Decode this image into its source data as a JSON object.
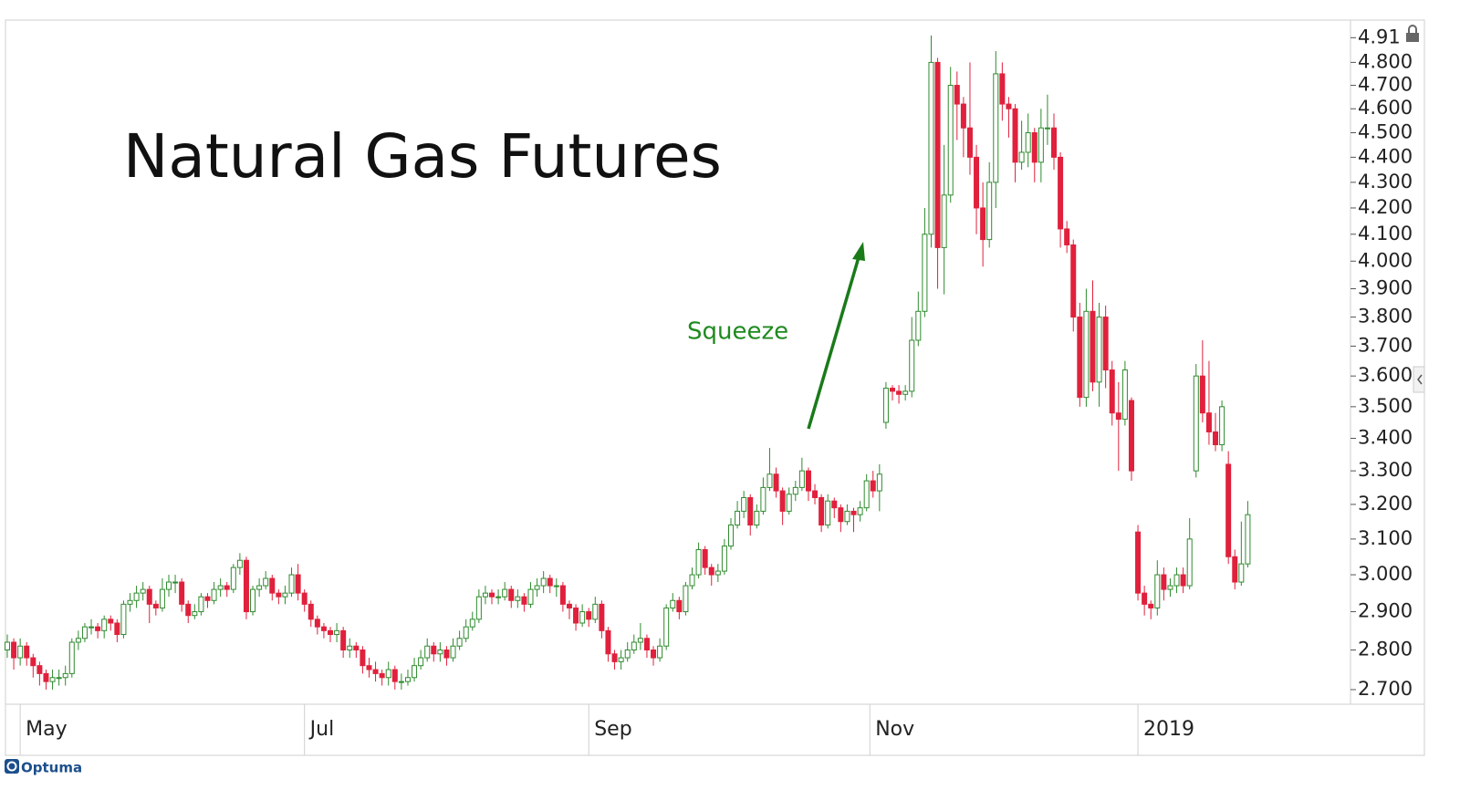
{
  "chart_data": {
    "type": "candlestick",
    "title": "Natural Gas Futures",
    "annotation": "Squeeze",
    "watermark": "Optuma",
    "log_y": true,
    "ylim": [
      2.664,
      4.99
    ],
    "yticks": [
      {
        "value": 2.7,
        "label": "2.700"
      },
      {
        "value": 2.8,
        "label": "2.800"
      },
      {
        "value": 2.9,
        "label": "2.900"
      },
      {
        "value": 3.0,
        "label": "3.000"
      },
      {
        "value": 3.1,
        "label": "3.100"
      },
      {
        "value": 3.2,
        "label": "3.200"
      },
      {
        "value": 3.3,
        "label": "3.300"
      },
      {
        "value": 3.4,
        "label": "3.400"
      },
      {
        "value": 3.5,
        "label": "3.500"
      },
      {
        "value": 3.6,
        "label": "3.600"
      },
      {
        "value": 3.7,
        "label": "3.700"
      },
      {
        "value": 3.8,
        "label": "3.800"
      },
      {
        "value": 3.9,
        "label": "3.900"
      },
      {
        "value": 4.0,
        "label": "4.000"
      },
      {
        "value": 4.1,
        "label": "4.100"
      },
      {
        "value": 4.2,
        "label": "4.200"
      },
      {
        "value": 4.3,
        "label": "4.300"
      },
      {
        "value": 4.4,
        "label": "4.400"
      },
      {
        "value": 4.5,
        "label": "4.500"
      },
      {
        "value": 4.6,
        "label": "4.600"
      },
      {
        "value": 4.7,
        "label": "4.700"
      },
      {
        "value": 4.8,
        "label": "4.800"
      },
      4.91
    ],
    "xlim": [
      -0.28,
      207.9
    ],
    "xticks": [
      {
        "value": 2,
        "label": "May"
      },
      {
        "value": 46,
        "label": "Jul"
      },
      {
        "value": 90,
        "label": "Sep"
      },
      {
        "value": 133.5,
        "label": "Nov"
      },
      {
        "value": 175,
        "label": "2019"
      }
    ],
    "up_color": "#2e8b2e",
    "down_color": "#e0203c",
    "open": [
      2.8,
      2.82,
      2.78,
      2.81,
      2.78,
      2.76,
      2.74,
      2.72,
      2.73,
      2.73,
      2.74,
      2.82,
      2.83,
      2.86,
      2.86,
      2.85,
      2.88,
      2.87,
      2.84,
      2.92,
      2.93,
      2.95,
      2.96,
      2.92,
      2.91,
      2.96,
      2.98,
      2.98,
      2.92,
      2.89,
      2.9,
      2.94,
      2.93,
      2.96,
      2.97,
      2.96,
      3.02,
      3.04,
      2.9,
      2.96,
      2.97,
      2.99,
      2.95,
      2.94,
      2.95,
      3.0,
      2.95,
      2.92,
      2.88,
      2.86,
      2.85,
      2.84,
      2.85,
      2.8,
      2.81,
      2.8,
      2.76,
      2.75,
      2.74,
      2.73,
      2.75,
      2.72,
      2.72,
      2.73,
      2.76,
      2.78,
      2.81,
      2.79,
      2.8,
      2.78,
      2.81,
      2.83,
      2.86,
      2.88,
      2.94,
      2.95,
      2.94,
      2.94,
      2.96,
      2.93,
      2.94,
      2.92,
      2.96,
      2.97,
      2.99,
      2.97,
      2.97,
      2.92,
      2.91,
      2.87,
      2.9,
      2.88,
      2.92,
      2.85,
      2.79,
      2.77,
      2.78,
      2.8,
      2.82,
      2.83,
      2.8,
      2.78,
      2.81,
      2.91,
      2.93,
      2.9,
      2.97,
      3.0,
      3.07,
      3.02,
      3.0,
      3.01,
      3.08,
      3.14,
      3.18,
      3.22,
      3.14,
      3.18,
      3.25,
      3.29,
      3.24,
      3.18,
      3.23,
      3.25,
      3.3,
      3.24,
      3.22,
      3.14,
      3.21,
      3.19,
      3.15,
      3.18,
      3.17,
      3.19,
      3.27,
      3.24,
      3.45,
      3.56,
      3.55,
      3.54,
      3.55,
      3.72,
      3.82,
      4.1,
      4.8,
      4.05,
      4.25,
      4.7,
      4.62,
      4.52,
      4.4,
      4.2,
      4.08,
      4.3,
      4.75,
      4.62,
      4.6,
      4.38,
      4.42,
      4.5,
      4.38,
      4.52,
      4.52,
      4.4,
      4.12,
      4.06,
      3.8,
      3.53,
      3.82,
      3.58,
      3.8,
      3.62,
      3.48,
      3.46,
      3.52,
      3.12,
      2.95,
      2.92,
      2.91,
      3.0,
      2.96,
      2.97,
      3.0,
      2.97,
      3.3,
      3.6,
      3.48,
      3.42,
      3.38,
      3.32,
      3.05,
      2.98,
      3.03
    ],
    "high": [
      2.84,
      2.83,
      2.83,
      2.82,
      2.79,
      2.77,
      2.75,
      2.75,
      2.75,
      2.76,
      2.83,
      2.85,
      2.87,
      2.88,
      2.87,
      2.89,
      2.89,
      2.88,
      2.93,
      2.95,
      2.97,
      2.98,
      2.97,
      2.93,
      2.99,
      3.0,
      3.0,
      2.99,
      2.93,
      2.92,
      2.95,
      2.95,
      2.98,
      2.99,
      2.98,
      3.03,
      3.06,
      3.05,
      2.97,
      2.99,
      3.01,
      3.0,
      2.96,
      2.97,
      3.02,
      3.03,
      2.96,
      2.93,
      2.89,
      2.87,
      2.86,
      2.87,
      2.86,
      2.83,
      2.82,
      2.81,
      2.78,
      2.77,
      2.75,
      2.77,
      2.76,
      2.74,
      2.75,
      2.78,
      2.8,
      2.83,
      2.82,
      2.82,
      2.81,
      2.83,
      2.85,
      2.88,
      2.9,
      2.96,
      2.97,
      2.96,
      2.96,
      2.98,
      2.97,
      2.96,
      2.95,
      2.98,
      2.99,
      3.01,
      3.0,
      2.99,
      2.98,
      2.93,
      2.92,
      2.92,
      2.91,
      2.94,
      2.93,
      2.86,
      2.8,
      2.8,
      2.82,
      2.84,
      2.87,
      2.84,
      2.81,
      2.83,
      2.92,
      2.95,
      2.94,
      2.98,
      3.02,
      3.09,
      3.08,
      3.03,
      3.03,
      3.1,
      3.16,
      3.21,
      3.24,
      3.23,
      3.2,
      3.28,
      3.37,
      3.31,
      3.25,
      3.25,
      3.27,
      3.34,
      3.31,
      3.26,
      3.23,
      3.23,
      3.22,
      3.2,
      3.2,
      3.19,
      3.21,
      3.29,
      3.3,
      3.32,
      3.58,
      3.57,
      3.57,
      3.57,
      3.8,
      3.89,
      4.2,
      4.92,
      4.82,
      4.45,
      4.78,
      4.76,
      4.65,
      4.8,
      4.45,
      4.3,
      4.38,
      4.85,
      4.8,
      4.65,
      4.62,
      4.55,
      4.58,
      4.52,
      4.6,
      4.66,
      4.58,
      4.42,
      4.15,
      4.08,
      3.85,
      3.9,
      3.93,
      3.85,
      3.84,
      3.65,
      3.58,
      3.65,
      3.53,
      3.14,
      2.97,
      2.93,
      3.04,
      3.02,
      2.99,
      3.02,
      3.02,
      3.16,
      3.64,
      3.72,
      3.65,
      3.48,
      3.52,
      3.36,
      3.07,
      3.15,
      3.21
    ],
    "low": [
      2.78,
      2.75,
      2.76,
      2.76,
      2.73,
      2.71,
      2.7,
      2.7,
      2.71,
      2.71,
      2.73,
      2.8,
      2.82,
      2.84,
      2.83,
      2.83,
      2.85,
      2.82,
      2.83,
      2.9,
      2.91,
      2.93,
      2.87,
      2.89,
      2.9,
      2.94,
      2.95,
      2.9,
      2.87,
      2.88,
      2.89,
      2.91,
      2.92,
      2.94,
      2.94,
      2.95,
      3.0,
      2.88,
      2.89,
      2.94,
      2.96,
      2.93,
      2.92,
      2.92,
      2.94,
      2.93,
      2.9,
      2.86,
      2.84,
      2.83,
      2.82,
      2.82,
      2.78,
      2.78,
      2.78,
      2.74,
      2.73,
      2.72,
      2.71,
      2.71,
      2.7,
      2.7,
      2.71,
      2.72,
      2.75,
      2.77,
      2.77,
      2.77,
      2.76,
      2.77,
      2.8,
      2.82,
      2.85,
      2.87,
      2.92,
      2.92,
      2.92,
      2.93,
      2.91,
      2.91,
      2.9,
      2.91,
      2.94,
      2.95,
      2.95,
      2.94,
      2.9,
      2.88,
      2.85,
      2.86,
      2.86,
      2.87,
      2.83,
      2.77,
      2.75,
      2.75,
      2.77,
      2.79,
      2.8,
      2.78,
      2.76,
      2.77,
      2.8,
      2.9,
      2.88,
      2.89,
      2.96,
      2.99,
      3.0,
      2.97,
      2.98,
      3.0,
      3.07,
      3.13,
      3.16,
      3.11,
      3.13,
      3.17,
      3.24,
      3.22,
      3.14,
      3.17,
      3.21,
      3.24,
      3.21,
      3.2,
      3.12,
      3.13,
      3.16,
      3.12,
      3.14,
      3.12,
      3.15,
      3.18,
      3.22,
      3.18,
      3.43,
      3.52,
      3.51,
      3.52,
      3.53,
      3.7,
      3.8,
      4.05,
      3.9,
      3.88,
      4.22,
      4.47,
      4.4,
      4.33,
      4.1,
      3.98,
      4.05,
      4.2,
      4.55,
      4.48,
      4.3,
      4.35,
      4.36,
      4.3,
      4.3,
      4.45,
      4.35,
      4.05,
      4.03,
      3.75,
      3.5,
      3.5,
      3.55,
      3.5,
      3.56,
      3.44,
      3.3,
      3.44,
      3.27,
      2.93,
      2.89,
      2.88,
      2.89,
      2.93,
      2.94,
      2.95,
      2.95,
      2.96,
      3.28,
      3.45,
      3.38,
      3.36,
      3.36,
      3.03,
      2.96,
      2.97,
      3.02
    ],
    "close": [
      2.82,
      2.78,
      2.81,
      2.78,
      2.76,
      2.74,
      2.72,
      2.73,
      2.73,
      2.74,
      2.82,
      2.83,
      2.86,
      2.86,
      2.85,
      2.88,
      2.87,
      2.84,
      2.92,
      2.93,
      2.95,
      2.96,
      2.92,
      2.91,
      2.96,
      2.98,
      2.98,
      2.92,
      2.89,
      2.9,
      2.94,
      2.93,
      2.96,
      2.97,
      2.96,
      3.02,
      3.04,
      2.9,
      2.96,
      2.97,
      2.99,
      2.95,
      2.94,
      2.95,
      3.0,
      2.95,
      2.92,
      2.88,
      2.86,
      2.85,
      2.84,
      2.85,
      2.8,
      2.81,
      2.8,
      2.76,
      2.75,
      2.74,
      2.73,
      2.75,
      2.72,
      2.72,
      2.73,
      2.76,
      2.78,
      2.81,
      2.79,
      2.8,
      2.78,
      2.81,
      2.83,
      2.86,
      2.88,
      2.94,
      2.95,
      2.94,
      2.94,
      2.96,
      2.93,
      2.94,
      2.92,
      2.96,
      2.97,
      2.99,
      2.97,
      2.97,
      2.92,
      2.91,
      2.87,
      2.9,
      2.88,
      2.92,
      2.85,
      2.79,
      2.77,
      2.78,
      2.8,
      2.82,
      2.83,
      2.8,
      2.78,
      2.81,
      2.91,
      2.93,
      2.9,
      2.97,
      3.0,
      3.07,
      3.02,
      3.0,
      3.01,
      3.08,
      3.14,
      3.18,
      3.22,
      3.14,
      3.18,
      3.25,
      3.29,
      3.24,
      3.18,
      3.23,
      3.25,
      3.3,
      3.24,
      3.22,
      3.14,
      3.21,
      3.19,
      3.15,
      3.18,
      3.17,
      3.19,
      3.27,
      3.24,
      3.29,
      3.56,
      3.55,
      3.54,
      3.55,
      3.72,
      3.82,
      4.1,
      4.8,
      4.05,
      4.25,
      4.7,
      4.62,
      4.52,
      4.4,
      4.2,
      4.08,
      4.3,
      4.75,
      4.62,
      4.6,
      4.38,
      4.42,
      4.5,
      4.38,
      4.52,
      4.52,
      4.4,
      4.12,
      4.06,
      3.8,
      3.53,
      3.82,
      3.58,
      3.8,
      3.62,
      3.48,
      3.46,
      3.62,
      3.3,
      2.95,
      2.92,
      2.91,
      3.0,
      2.96,
      2.97,
      3.0,
      2.97,
      3.1,
      3.6,
      3.48,
      3.42,
      3.38,
      3.5,
      3.05,
      2.98,
      3.03,
      3.17
    ]
  }
}
